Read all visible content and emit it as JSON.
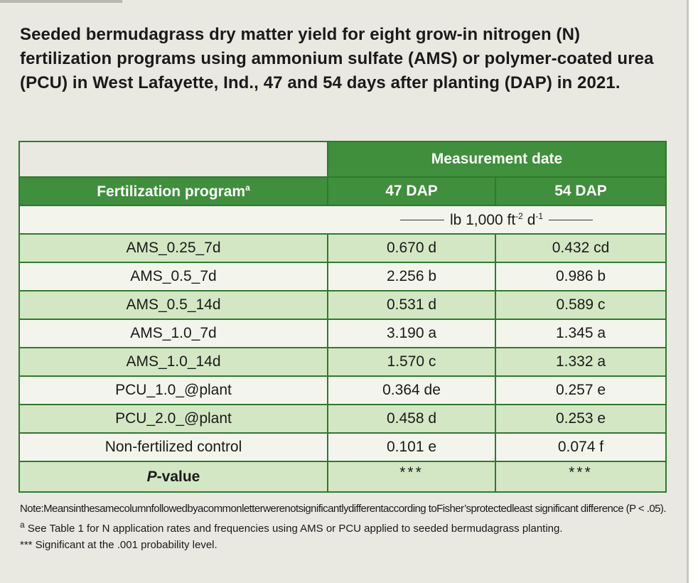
{
  "title": "Seeded bermudagrass dry matter yield for eight grow-in nitrogen (N) fertilization programs using ammonium sulfate (AMS) or polymer-coated urea (PCU) in West Lafayette, Ind., 47 and 54 days after planting (DAP) in 2021.",
  "table": {
    "group_header": "Measurement date",
    "col_program": "Fertilization program",
    "col_program_sup": "a",
    "col_47": "47 DAP",
    "col_54": "54 DAP",
    "units": "lb 1,000 ft",
    "units_exp1": "-2",
    "units_mid": " d",
    "units_exp2": "-1",
    "rows": [
      {
        "program": "AMS_0.25_7d",
        "dap47": "0.670 d",
        "dap54": "0.432 cd"
      },
      {
        "program": "AMS_0.5_7d",
        "dap47": "2.256 b",
        "dap54": "0.986 b"
      },
      {
        "program": "AMS_0.5_14d",
        "dap47": "0.531 d",
        "dap54": "0.589 c"
      },
      {
        "program": "AMS_1.0_7d",
        "dap47": "3.190 a",
        "dap54": "1.345 a"
      },
      {
        "program": "AMS_1.0_14d",
        "dap47": "1.570 c",
        "dap54": "1.332 a"
      },
      {
        "program": "PCU_1.0_@plant",
        "dap47": "0.364 de",
        "dap54": "0.257 e"
      },
      {
        "program": "PCU_2.0_@plant",
        "dap47": "0.458 d",
        "dap54": "0.253 e"
      },
      {
        "program": "Non-fertilized control",
        "dap47": "0.101 e",
        "dap54": "0.074 f"
      }
    ],
    "pvalue_label_italic": "P",
    "pvalue_label_rest": "-value",
    "pvalue_47": "***",
    "pvalue_54": "***"
  },
  "notes": {
    "note1": "Note:Meansinthesamecolumnfollowedbyacommonletterwerenotsignificantlydifferentaccording toFisher’sprotectedleast significant difference (P < .05).",
    "note2_sup": "a",
    "note2": " See Table 1 for N application rates and frequencies using AMS or PCU applied to seeded bermudagrass planting.",
    "note3": "*** Significant at the .001 probability level."
  },
  "colors": {
    "header_green": "#3f8f3c",
    "border_green": "#2f7a2f",
    "row_shade": "#d4e7c4",
    "row_plain": "#f3f5ec",
    "panel_bg": "#e9e8e1"
  }
}
